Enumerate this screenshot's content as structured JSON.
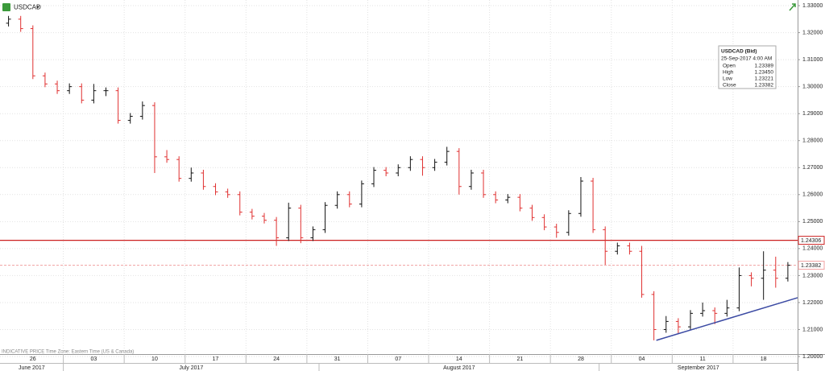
{
  "chart_data": {
    "type": "ohlc",
    "title": "USDCAD",
    "footnote": "INDICATIVE PRICE   Time Zone: Eastern Time (US & Canada)",
    "xlim": [
      -0.2,
      65.3
    ],
    "ylim": [
      1.2009,
      1.3321
    ],
    "yticks": [
      {
        "value": 1.2,
        "label": "1.20000"
      },
      {
        "value": 1.21,
        "label": "1.21000"
      },
      {
        "value": 1.22,
        "label": "1.22000"
      },
      {
        "value": 1.23,
        "label": "1.23000"
      },
      {
        "value": 1.24,
        "label": "1.24000"
      },
      {
        "value": 1.25,
        "label": "1.25000"
      },
      {
        "value": 1.26,
        "label": "1.26000"
      },
      {
        "value": 1.27,
        "label": "1.27000"
      },
      {
        "value": 1.28,
        "label": "1.28000"
      },
      {
        "value": 1.29,
        "label": "1.29000"
      },
      {
        "value": 1.3,
        "label": "1.30000"
      },
      {
        "value": 1.31,
        "label": "1.31000"
      },
      {
        "value": 1.32,
        "label": "1.32000"
      },
      {
        "value": 1.33,
        "label": "1.33000"
      }
    ],
    "xticks": [
      {
        "value": 2.5,
        "label": "26"
      },
      {
        "value": 7.5,
        "label": "03"
      },
      {
        "value": 12.5,
        "label": "10"
      },
      {
        "value": 17.5,
        "label": "17"
      },
      {
        "value": 22.5,
        "label": "24"
      },
      {
        "value": 27.5,
        "label": "31"
      },
      {
        "value": 32.5,
        "label": "07"
      },
      {
        "value": 37.5,
        "label": "14"
      },
      {
        "value": 42.5,
        "label": "21"
      },
      {
        "value": 47.5,
        "label": "28"
      },
      {
        "value": 52.5,
        "label": "04"
      },
      {
        "value": 57.5,
        "label": "11"
      },
      {
        "value": 62.5,
        "label": "18"
      }
    ],
    "xgrid": [
      5,
      10,
      15,
      20,
      25,
      30,
      35,
      40,
      45,
      50,
      55,
      60
    ],
    "months": [
      {
        "label": "June 2017",
        "from": -0.2,
        "to": 5
      },
      {
        "label": "July 2017",
        "from": 5,
        "to": 26
      },
      {
        "label": "August 2017",
        "from": 26,
        "to": 49
      },
      {
        "label": "September 2017",
        "from": 49,
        "to": 65.3
      }
    ],
    "grid": true,
    "series": [
      {
        "name": "USDCAD",
        "up_color": "#111111",
        "down_color": "#e03030",
        "open": [
          1.3235,
          1.325,
          1.3215,
          1.304,
          1.301,
          1.2985,
          1.3,
          1.295,
          1.2985,
          1.2985,
          1.2875,
          1.289,
          1.293,
          1.274,
          1.273,
          1.266,
          1.268,
          1.263,
          1.261,
          1.26,
          1.2535,
          1.252,
          1.2505,
          1.244,
          1.255,
          1.244,
          1.247,
          1.256,
          1.26,
          1.2565,
          1.264,
          1.269,
          1.268,
          1.27,
          1.273,
          1.27,
          1.272,
          1.276,
          1.263,
          1.268,
          1.26,
          1.258,
          1.259,
          1.255,
          1.2515,
          1.248,
          1.246,
          1.253,
          1.265,
          1.247,
          1.239,
          1.241,
          1.239,
          1.223,
          1.21,
          1.213,
          1.211,
          1.216,
          1.217,
          1.216,
          1.218,
          1.23,
          1.229,
          1.232,
          1.229
        ],
        "high": [
          1.3262,
          1.3262,
          1.3227,
          1.3052,
          1.3022,
          1.3012,
          1.3012,
          1.301,
          1.2997,
          1.2997,
          1.2902,
          1.2945,
          1.2942,
          1.2765,
          1.2742,
          1.27,
          1.2692,
          1.2642,
          1.2622,
          1.2612,
          1.2547,
          1.2532,
          1.2517,
          1.257,
          1.2562,
          1.2482,
          1.2572,
          1.2612,
          1.2612,
          1.2652,
          1.2702,
          1.2702,
          1.2712,
          1.2742,
          1.2742,
          1.2732,
          1.2777,
          1.2772,
          1.2692,
          1.2692,
          1.2612,
          1.2602,
          1.2602,
          1.2562,
          1.2527,
          1.2492,
          1.2542,
          1.2665,
          1.2662,
          1.2482,
          1.2422,
          1.2422,
          1.241,
          1.2242,
          1.215,
          1.2142,
          1.2172,
          1.22,
          1.2182,
          1.221,
          1.233,
          1.2312,
          1.239,
          1.237,
          1.235
        ],
        "low": [
          1.3223,
          1.3203,
          1.3028,
          1.2998,
          1.2973,
          1.2973,
          1.2938,
          1.2938,
          1.2965,
          1.2863,
          1.2863,
          1.2878,
          1.268,
          1.2718,
          1.2648,
          1.2648,
          1.2618,
          1.2598,
          1.2588,
          1.2523,
          1.2508,
          1.2493,
          1.241,
          1.2428,
          1.242,
          1.2428,
          1.2458,
          1.2548,
          1.2553,
          1.2553,
          1.2628,
          1.2668,
          1.2668,
          1.2688,
          1.267,
          1.2688,
          1.2708,
          1.26,
          1.2618,
          1.2588,
          1.2568,
          1.2568,
          1.2538,
          1.2503,
          1.2468,
          1.244,
          1.2448,
          1.2518,
          1.2458,
          1.234,
          1.2378,
          1.2378,
          1.2218,
          1.206,
          1.2088,
          1.2085,
          1.2098,
          1.2148,
          1.212,
          1.2148,
          1.2168,
          1.226,
          1.221,
          1.2255,
          1.2278
        ],
        "close": [
          1.325,
          1.3215,
          1.304,
          1.301,
          1.2985,
          1.3,
          1.295,
          1.2985,
          1.2985,
          1.2875,
          1.289,
          1.293,
          1.274,
          1.273,
          1.266,
          1.268,
          1.263,
          1.261,
          1.26,
          1.2535,
          1.252,
          1.2505,
          1.244,
          1.255,
          1.244,
          1.247,
          1.256,
          1.26,
          1.2565,
          1.264,
          1.269,
          1.268,
          1.27,
          1.273,
          1.27,
          1.272,
          1.276,
          1.263,
          1.268,
          1.26,
          1.258,
          1.259,
          1.255,
          1.2515,
          1.248,
          1.246,
          1.253,
          1.265,
          1.247,
          1.239,
          1.241,
          1.239,
          1.223,
          1.21,
          1.213,
          1.211,
          1.216,
          1.217,
          1.216,
          1.218,
          1.23,
          1.229,
          1.232,
          1.229,
          1.23382
        ]
      }
    ],
    "hlines": [
      {
        "value": 1.24306,
        "label": "1.24306",
        "color": "#cc2020",
        "style": "solid"
      },
      {
        "value": 1.23382,
        "label": "1.23382",
        "color": "#f0a0a0",
        "style": "dashed"
      }
    ],
    "trendline": {
      "x": [
        53.7,
        65.3
      ],
      "y": [
        1.206,
        1.2218
      ],
      "color": "#3b4aa3"
    },
    "info": {
      "title": "USDCAD (Bid)",
      "date": "25-Sep-2017 4:00 AM",
      "rows": [
        [
          "Open",
          "1.23389"
        ],
        [
          "High",
          "1.23450"
        ],
        [
          "Low",
          "1.23221"
        ],
        [
          "Close",
          "1.23382"
        ]
      ]
    }
  }
}
